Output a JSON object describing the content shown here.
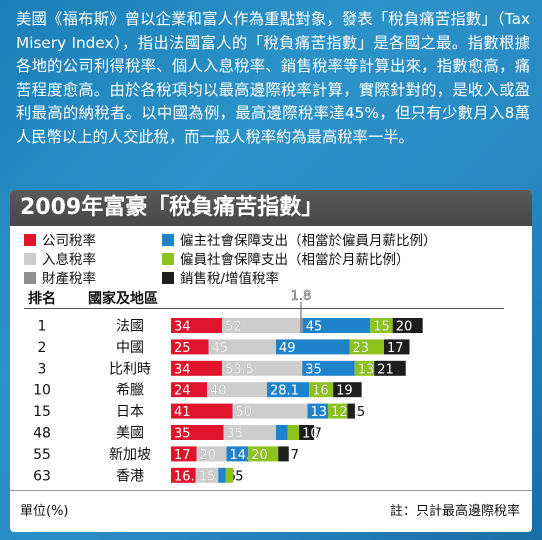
{
  "intro_text": "美國《福布斯》曾以企業和富人作為重點對象，發表「稅負痛苦指數」（Tax Misery Index），指出法國富人的「稅負痛苦指數」是各國之最。指數根據各地的公司利得稅率、個人入息稅率、銷售稅率等計算出來，指數愈高，痛苦程度愈高。由於各稅項均以最高邊際稅率計算，實際針對的，是收入或盈利最高的納稅者。以中國為例，最高邊際稅率達45%，但只有少數月入8萬人民幣以上的人交此稅，而一般人稅率約為最高稅率一半。",
  "headers": {
    "rank": "排名",
    "country": "國家及地區"
  },
  "footer": {
    "unit": "單位(%)",
    "note": "註：只計最高邊際稅率"
  },
  "colors": {
    "corporate": "#e0142d",
    "income": "#cdcdcd",
    "property": "#8f8f8f",
    "employer_ss": "#1f83cc",
    "employee_ss": "#8ec21f",
    "sales": "#1e1e1e"
  },
  "legend": [
    {
      "key": "corporate",
      "label": "公司稅率"
    },
    {
      "key": "employer_ss",
      "label": "僱主社會保障支出（相當於僱員月薪比例）"
    },
    {
      "key": "income",
      "label": "入息稅率"
    },
    {
      "key": "employee_ss",
      "label": "僱員社會保障支出（相當於月薪比例）"
    },
    {
      "key": "property",
      "label": "財產稅率"
    },
    {
      "key": "sales",
      "label": "銷售稅/增值稅率"
    }
  ],
  "chart_data": {
    "type": "bar",
    "stacked": true,
    "orientation": "horizontal",
    "title": "2009年富豪「稅負痛苦指數」",
    "unit": "%",
    "categories": [
      "法國",
      "中國",
      "比利時",
      "希臘",
      "日本",
      "美國",
      "新加坡",
      "香港"
    ],
    "ranks": [
      "1",
      "2",
      "3",
      "10",
      "15",
      "48",
      "55",
      "63"
    ],
    "series": [
      {
        "key": "corporate",
        "name": "公司稅率",
        "values": [
          34,
          25,
          34,
          24,
          41,
          35,
          17,
          16.5
        ]
      },
      {
        "key": "income",
        "name": "入息稅率",
        "values": [
          52,
          45,
          53.5,
          40,
          50,
          35,
          20,
          15
        ]
      },
      {
        "key": "property",
        "name": "財產稅率",
        "values": [
          1.8,
          0,
          0,
          0,
          0,
          0,
          0,
          0
        ]
      },
      {
        "key": "employer_ss",
        "name": "僱主社會保障支出（相當於僱員月薪比例）",
        "values": [
          45,
          49,
          35,
          28.1,
          13.7,
          7.7,
          14.5,
          5
        ]
      },
      {
        "key": "employee_ss",
        "name": "僱員社會保障支出（相當於月薪比例）",
        "values": [
          15,
          23,
          13,
          16,
          12.9,
          7.7,
          20,
          5
        ]
      },
      {
        "key": "sales",
        "name": "銷售稅/增值稅率",
        "values": [
          20,
          17,
          21,
          19,
          5,
          10,
          7,
          0
        ]
      }
    ],
    "value_labels": {
      "corporate": [
        "34",
        "25",
        "34",
        "24",
        "41",
        "35",
        "17",
        "16.5"
      ],
      "income": [
        "52",
        "45",
        "53.5",
        "40",
        "50",
        "35",
        "20",
        "15"
      ],
      "property": [
        "1.8",
        "",
        "",
        "",
        "",
        "",
        "",
        ""
      ],
      "employer_ss": [
        "45",
        "49",
        "35",
        "28.1",
        "13.7",
        "7.7",
        "14.5",
        "5"
      ],
      "employee_ss": [
        "15",
        "23",
        "13",
        "16",
        "12.9",
        "7.7",
        "20",
        "5"
      ],
      "sales": [
        "20",
        "17",
        "21",
        "19",
        "5",
        "10",
        "7",
        ""
      ]
    }
  }
}
